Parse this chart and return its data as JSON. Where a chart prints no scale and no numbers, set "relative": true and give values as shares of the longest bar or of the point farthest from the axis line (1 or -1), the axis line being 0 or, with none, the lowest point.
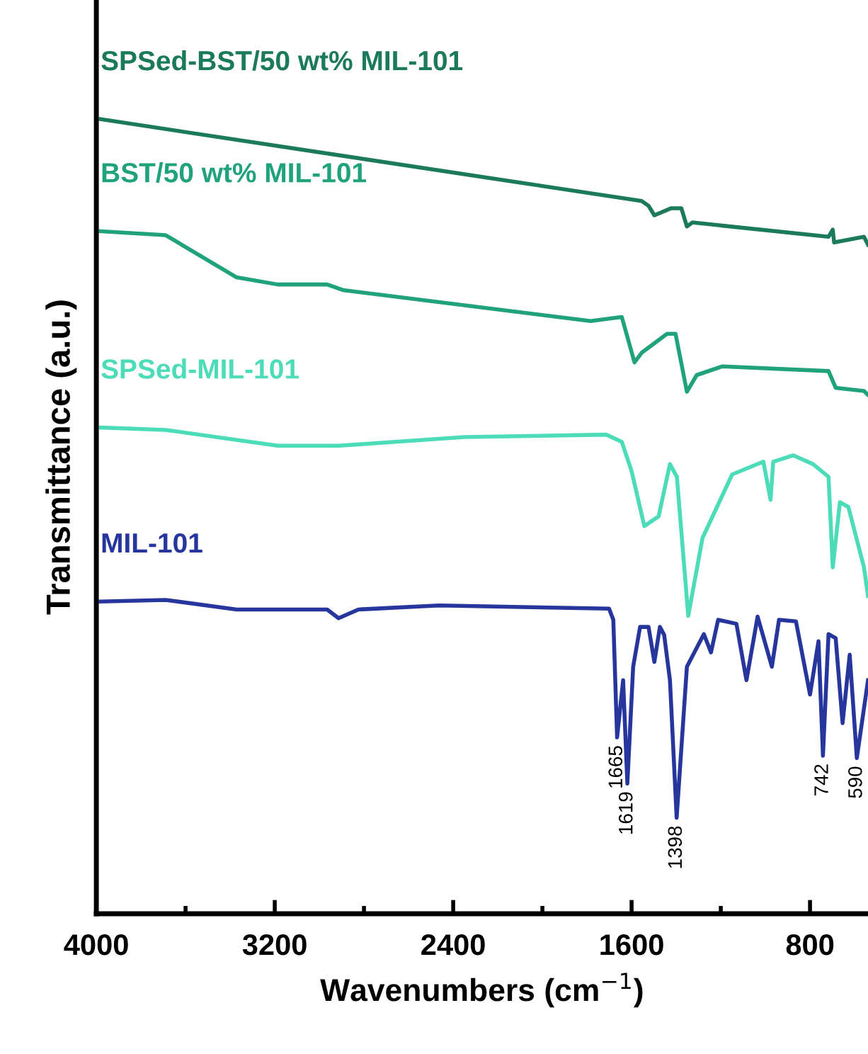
{
  "chart_data": {
    "type": "line",
    "relative": true,
    "xlabel": "Wavenumbers (cm$^{−1}$)",
    "ylabel": "Transmittance (a.u.)",
    "xlim": [
      4000,
      540
    ],
    "xticks": [
      4000,
      {
        "value": 3600,
        "label": null
      },
      3200,
      {
        "value": 2800,
        "label": null
      },
      2400,
      {
        "value": 2000,
        "label": null
      },
      1600,
      {
        "value": 1200,
        "label": null
      },
      800
    ],
    "tick_labels": "x",
    "grid": false,
    "legend": false,
    "marker": "none",
    "line_style": "solid",
    "series": [
      {
        "name": "SPSed-BST/50 wt% MIL-101",
        "color": "#1b7a5b",
        "x": [
          3981,
          1555,
          1524,
          1498,
          1422,
          1377,
          1352,
          1327,
          717,
          698,
          692,
          558,
          540
        ],
        "values": [
          1.0,
          0.897,
          0.891,
          0.879,
          0.888,
          0.888,
          0.865,
          0.87,
          0.852,
          0.861,
          0.845,
          0.852,
          0.842
        ]
      },
      {
        "name": "BST/50 wt% MIL-101",
        "color": "#20a27c",
        "x": [
          3981,
          3689,
          3371,
          3187,
          2965,
          2895,
          1784,
          1644,
          1587,
          1555,
          1441,
          1403,
          1352,
          1308,
          1193,
          717,
          685,
          558,
          540
        ],
        "values": [
          0.859,
          0.854,
          0.801,
          0.792,
          0.792,
          0.785,
          0.746,
          0.751,
          0.694,
          0.706,
          0.73,
          0.73,
          0.657,
          0.678,
          0.689,
          0.683,
          0.662,
          0.658,
          0.653
        ]
      },
      {
        "name": "SPSed-MIL-101",
        "color": "#4cdcb8",
        "x": [
          3981,
          3689,
          3187,
          2914,
          2349,
          1714,
          1644,
          1600,
          1543,
          1479,
          1428,
          1397,
          1346,
          1282,
          1149,
          1009,
          977,
          965,
          876,
          787,
          717,
          698,
          666,
          628,
          558,
          540
        ],
        "values": [
          0.612,
          0.609,
          0.589,
          0.589,
          0.6,
          0.603,
          0.594,
          0.557,
          0.488,
          0.5,
          0.566,
          0.55,
          0.375,
          0.473,
          0.553,
          0.569,
          0.521,
          0.569,
          0.577,
          0.566,
          0.55,
          0.436,
          0.518,
          0.512,
          0.436,
          0.4
        ]
      },
      {
        "name": "MIL-101",
        "color": "#27369c",
        "x": [
          3981,
          3689,
          3371,
          2965,
          2914,
          2825,
          2463,
          1701,
          1682,
          1665,
          1638,
          1619,
          1593,
          1562,
          1524,
          1498,
          1473,
          1454,
          1428,
          1398,
          1352,
          1276,
          1244,
          1212,
          1130,
          1085,
          1035,
          971,
          939,
          863,
          800,
          762,
          742,
          717,
          685,
          654,
          622,
          590,
          540
        ],
        "values": [
          0.393,
          0.395,
          0.383,
          0.383,
          0.372,
          0.383,
          0.388,
          0.384,
          0.37,
          0.222,
          0.294,
          0.164,
          0.311,
          0.361,
          0.361,
          0.317,
          0.361,
          0.351,
          0.294,
          0.121,
          0.311,
          0.352,
          0.329,
          0.37,
          0.365,
          0.294,
          0.374,
          0.311,
          0.37,
          0.368,
          0.276,
          0.343,
          0.199,
          0.352,
          0.347,
          0.24,
          0.326,
          0.196,
          0.294
        ]
      }
    ],
    "annotations": [
      {
        "text": "1665",
        "x": 1665,
        "y": 0.222
      },
      {
        "text": "1619",
        "x": 1619,
        "y": 0.164
      },
      {
        "text": "1398",
        "x": 1398,
        "y": 0.121
      },
      {
        "text": "742",
        "x": 742,
        "y": 0.199
      },
      {
        "text": "590",
        "x": 590,
        "y": 0.196
      }
    ]
  }
}
